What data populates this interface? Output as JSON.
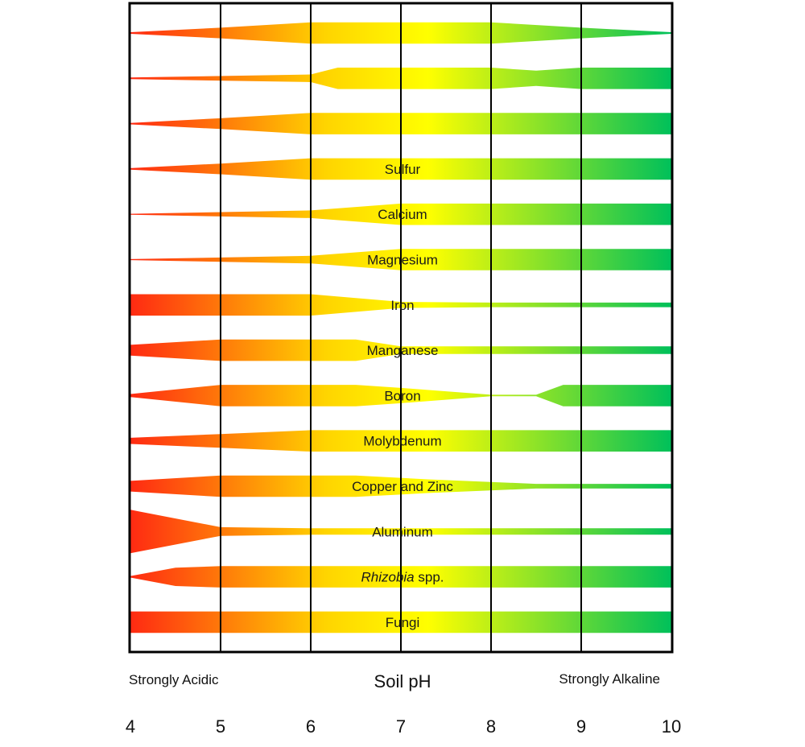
{
  "chart_data": {
    "type": "area",
    "title": "",
    "xlabel": "Soil pH",
    "x_left_label": "Strongly Acidic",
    "x_right_label": "Strongly Alkaline",
    "xlim": [
      4,
      10
    ],
    "x_ticks": [
      "4",
      "5",
      "6",
      "7",
      "8",
      "9",
      "10"
    ],
    "grid": true,
    "colors": {
      "acidic": "#ff2a12",
      "mid": "#ffd400",
      "neutral": "#ffff00",
      "alkaline": "#00c05a",
      "frame": "#000000"
    },
    "series": [
      {
        "name": "",
        "label_main": "",
        "label_suffix": "",
        "profile": [
          [
            4,
            0.05
          ],
          [
            5,
            0.35
          ],
          [
            6,
            0.7
          ],
          [
            7,
            0.7
          ],
          [
            8,
            0.7
          ],
          [
            9,
            0.35
          ],
          [
            10,
            0.05
          ]
        ]
      },
      {
        "name": "",
        "label_main": "",
        "label_suffix": "",
        "profile": [
          [
            4,
            0.05
          ],
          [
            6,
            0.25
          ],
          [
            6.3,
            0.7
          ],
          [
            7,
            0.7
          ],
          [
            8,
            0.7
          ],
          [
            8.5,
            0.5
          ],
          [
            9,
            0.7
          ],
          [
            10,
            0.7
          ]
        ]
      },
      {
        "name": "",
        "label_main": "",
        "label_suffix": "",
        "profile": [
          [
            4,
            0.05
          ],
          [
            5,
            0.35
          ],
          [
            6,
            0.7
          ],
          [
            7,
            0.7
          ],
          [
            8,
            0.7
          ],
          [
            9,
            0.7
          ],
          [
            10,
            0.7
          ]
        ]
      },
      {
        "name": "Sulfur",
        "label_main": "Sulfur",
        "label_suffix": "",
        "profile": [
          [
            4,
            0.05
          ],
          [
            5,
            0.35
          ],
          [
            6,
            0.7
          ],
          [
            7,
            0.7
          ],
          [
            8,
            0.7
          ],
          [
            9,
            0.7
          ],
          [
            10,
            0.7
          ]
        ]
      },
      {
        "name": "Calcium",
        "label_main": "Calcium",
        "label_suffix": "",
        "profile": [
          [
            4,
            0.03
          ],
          [
            6,
            0.25
          ],
          [
            7,
            0.7
          ],
          [
            8,
            0.7
          ],
          [
            9,
            0.7
          ],
          [
            10,
            0.7
          ]
        ]
      },
      {
        "name": "Magnesium",
        "label_main": "Magnesium",
        "label_suffix": "",
        "profile": [
          [
            4,
            0.03
          ],
          [
            6,
            0.25
          ],
          [
            7,
            0.7
          ],
          [
            8,
            0.7
          ],
          [
            9,
            0.7
          ],
          [
            10,
            0.7
          ]
        ]
      },
      {
        "name": "Iron",
        "label_main": "Iron",
        "label_suffix": "",
        "profile": [
          [
            4,
            0.7
          ],
          [
            6,
            0.7
          ],
          [
            7,
            0.2
          ],
          [
            8,
            0.15
          ],
          [
            9,
            0.15
          ],
          [
            10,
            0.15
          ]
        ]
      },
      {
        "name": "Manganese",
        "label_main": "Manganese",
        "label_suffix": "",
        "profile": [
          [
            4,
            0.35
          ],
          [
            5,
            0.7
          ],
          [
            6.5,
            0.7
          ],
          [
            7,
            0.25
          ],
          [
            8,
            0.25
          ],
          [
            9,
            0.25
          ],
          [
            10,
            0.25
          ]
        ]
      },
      {
        "name": "Boron",
        "label_main": "Boron",
        "label_suffix": "",
        "profile": [
          [
            4,
            0.1
          ],
          [
            5,
            0.7
          ],
          [
            6.5,
            0.7
          ],
          [
            7,
            0.5
          ],
          [
            8,
            0.05
          ],
          [
            8.5,
            0.05
          ],
          [
            8.8,
            0.7
          ],
          [
            10,
            0.7
          ]
        ]
      },
      {
        "name": "Molybdenum",
        "label_main": "Molybdenum",
        "label_suffix": "",
        "profile": [
          [
            4,
            0.2
          ],
          [
            5,
            0.45
          ],
          [
            6,
            0.7
          ],
          [
            7,
            0.7
          ],
          [
            8,
            0.7
          ],
          [
            9,
            0.7
          ],
          [
            10,
            0.7
          ]
        ]
      },
      {
        "name": "Copper and Zinc",
        "label_main": "Copper and Zinc",
        "label_suffix": "",
        "profile": [
          [
            4,
            0.35
          ],
          [
            5,
            0.7
          ],
          [
            6.5,
            0.7
          ],
          [
            7.3,
            0.45
          ],
          [
            8.5,
            0.15
          ],
          [
            9,
            0.15
          ],
          [
            10,
            0.15
          ]
        ]
      },
      {
        "name": "Aluminum",
        "label_main": "Aluminum",
        "label_suffix": "",
        "profile": [
          [
            4,
            1.0
          ],
          [
            5,
            0.2
          ],
          [
            6,
            0.15
          ],
          [
            7,
            0.15
          ],
          [
            8,
            0.15
          ],
          [
            9,
            0.15
          ],
          [
            10,
            0.15
          ]
        ]
      },
      {
        "name": "Rhizobia spp.",
        "label_main": "Rhizobia",
        "label_suffix": " spp.",
        "profile": [
          [
            4,
            0.05
          ],
          [
            4.5,
            0.6
          ],
          [
            5,
            0.7
          ],
          [
            6,
            0.7
          ],
          [
            7,
            0.7
          ],
          [
            8,
            0.7
          ],
          [
            9,
            0.7
          ],
          [
            10,
            0.7
          ]
        ]
      },
      {
        "name": "Fungi",
        "label_main": "Fungi",
        "label_suffix": "",
        "profile": [
          [
            4,
            0.7
          ],
          [
            10,
            0.7
          ]
        ]
      }
    ]
  }
}
